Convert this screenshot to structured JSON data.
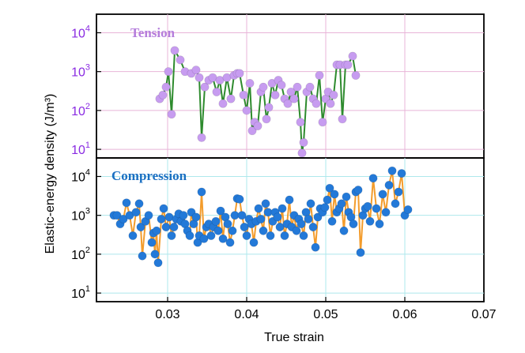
{
  "chart_data": {
    "type": "scatter",
    "xlabel": "True strain",
    "ylabel": "Elastic-energy density (J/m³)",
    "x_ticks": [
      0.03,
      0.04,
      0.05,
      0.06,
      0.07
    ],
    "x_tick_labels": [
      "0.03",
      "0.04",
      "0.05",
      "0.06",
      "0.07"
    ],
    "xlim": [
      0.021,
      0.07
    ],
    "y_scale": "log",
    "grid": true,
    "panels": [
      {
        "label": "Tension",
        "label_color": "#b57edc",
        "marker_color": "#c79cf0",
        "line_color": "#2e8b2e",
        "grid_color": "#e8b4d8",
        "ylim": [
          6,
          30000
        ],
        "y_ticks": [
          10,
          100,
          1000,
          10000
        ],
        "y_tick_labels": [
          {
            "base": "10",
            "exp": "1"
          },
          {
            "base": "10",
            "exp": "2"
          },
          {
            "base": "10",
            "exp": "3"
          },
          {
            "base": "10",
            "exp": "4"
          }
        ],
        "y_tick_color": "#8a2be2",
        "points": [
          [
            0.029,
            200
          ],
          [
            0.0294,
            250
          ],
          [
            0.0298,
            400
          ],
          [
            0.0301,
            1000
          ],
          [
            0.0305,
            80
          ],
          [
            0.0309,
            3500
          ],
          [
            0.0316,
            2000
          ],
          [
            0.0322,
            1000
          ],
          [
            0.033,
            900
          ],
          [
            0.0336,
            1100
          ],
          [
            0.034,
            700
          ],
          [
            0.0343,
            20
          ],
          [
            0.0347,
            400
          ],
          [
            0.0352,
            600
          ],
          [
            0.0357,
            700
          ],
          [
            0.0362,
            300
          ],
          [
            0.0366,
            600
          ],
          [
            0.037,
            150
          ],
          [
            0.0375,
            700
          ],
          [
            0.038,
            200
          ],
          [
            0.0384,
            800
          ],
          [
            0.0388,
            900
          ],
          [
            0.0391,
            900
          ],
          [
            0.0396,
            250
          ],
          [
            0.04,
            100
          ],
          [
            0.0404,
            500
          ],
          [
            0.0407,
            30
          ],
          [
            0.041,
            50
          ],
          [
            0.0414,
            40
          ],
          [
            0.0418,
            300
          ],
          [
            0.0421,
            400
          ],
          [
            0.0425,
            60
          ],
          [
            0.0428,
            120
          ],
          [
            0.0432,
            500
          ],
          [
            0.0436,
            250
          ],
          [
            0.044,
            600
          ],
          [
            0.0444,
            450
          ],
          [
            0.0448,
            200
          ],
          [
            0.0452,
            150
          ],
          [
            0.0456,
            300
          ],
          [
            0.046,
            200
          ],
          [
            0.0464,
            400
          ],
          [
            0.0468,
            50
          ],
          [
            0.047,
            8
          ],
          [
            0.0472,
            15
          ],
          [
            0.0476,
            300
          ],
          [
            0.048,
            400
          ],
          [
            0.0484,
            200
          ],
          [
            0.0488,
            150
          ],
          [
            0.0492,
            800
          ],
          [
            0.0496,
            50
          ],
          [
            0.05,
            200
          ],
          [
            0.0503,
            300
          ],
          [
            0.0506,
            150
          ],
          [
            0.051,
            250
          ],
          [
            0.0514,
            1500
          ],
          [
            0.0518,
            1500
          ],
          [
            0.0521,
            60
          ],
          [
            0.0525,
            1500
          ],
          [
            0.0528,
            1500
          ],
          [
            0.0534,
            2500
          ],
          [
            0.0538,
            800
          ]
        ]
      },
      {
        "label": "Compression",
        "label_color": "#1a6fc2",
        "marker_color": "#2379d8",
        "line_color": "#f39c2c",
        "grid_color": "#aee8ec",
        "ylim": [
          6,
          30000
        ],
        "y_ticks": [
          10,
          100,
          1000,
          10000
        ],
        "y_tick_labels": [
          {
            "base": "10",
            "exp": "1"
          },
          {
            "base": "10",
            "exp": "2"
          },
          {
            "base": "10",
            "exp": "3"
          },
          {
            "base": "10",
            "exp": "4"
          }
        ],
        "y_tick_color": "#000000",
        "points": [
          [
            0.0232,
            1000
          ],
          [
            0.0236,
            1000
          ],
          [
            0.024,
            600
          ],
          [
            0.0244,
            800
          ],
          [
            0.0248,
            2100
          ],
          [
            0.0252,
            1000
          ],
          [
            0.0256,
            300
          ],
          [
            0.026,
            1200
          ],
          [
            0.0264,
            2000
          ],
          [
            0.0266,
            500
          ],
          [
            0.0268,
            90
          ],
          [
            0.0272,
            700
          ],
          [
            0.0276,
            1000
          ],
          [
            0.028,
            200
          ],
          [
            0.0282,
            350
          ],
          [
            0.0284,
            100
          ],
          [
            0.0286,
            400
          ],
          [
            0.0288,
            60
          ],
          [
            0.0292,
            800
          ],
          [
            0.0295,
            1500
          ],
          [
            0.0298,
            500
          ],
          [
            0.0302,
            900
          ],
          [
            0.0305,
            300
          ],
          [
            0.0308,
            500
          ],
          [
            0.0311,
            800
          ],
          [
            0.0314,
            1100
          ],
          [
            0.0317,
            700
          ],
          [
            0.032,
            1000
          ],
          [
            0.0322,
            600
          ],
          [
            0.0325,
            400
          ],
          [
            0.0328,
            300
          ],
          [
            0.033,
            1200
          ],
          [
            0.0333,
            600
          ],
          [
            0.0336,
            900
          ],
          [
            0.0338,
            200
          ],
          [
            0.034,
            300
          ],
          [
            0.0343,
            4000
          ],
          [
            0.0346,
            250
          ],
          [
            0.0349,
            500
          ],
          [
            0.0352,
            600
          ],
          [
            0.0355,
            300
          ],
          [
            0.0358,
            500
          ],
          [
            0.0361,
            700
          ],
          [
            0.0364,
            400
          ],
          [
            0.0367,
            1300
          ],
          [
            0.037,
            250
          ],
          [
            0.0373,
            900
          ],
          [
            0.0376,
            600
          ],
          [
            0.0379,
            200
          ],
          [
            0.0382,
            400
          ],
          [
            0.0385,
            1000
          ],
          [
            0.0388,
            2700
          ],
          [
            0.0391,
            2600
          ],
          [
            0.0394,
            1000
          ],
          [
            0.0397,
            500
          ],
          [
            0.04,
            300
          ],
          [
            0.0403,
            800
          ],
          [
            0.0406,
            600
          ],
          [
            0.0409,
            200
          ],
          [
            0.0412,
            700
          ],
          [
            0.0415,
            1500
          ],
          [
            0.0418,
            800
          ],
          [
            0.0421,
            400
          ],
          [
            0.0424,
            2000
          ],
          [
            0.0427,
            1200
          ],
          [
            0.043,
            300
          ],
          [
            0.0433,
            700
          ],
          [
            0.0436,
            1200
          ],
          [
            0.0439,
            900
          ],
          [
            0.0442,
            500
          ],
          [
            0.0445,
            1500
          ],
          [
            0.0448,
            300
          ],
          [
            0.0451,
            600
          ],
          [
            0.0454,
            2500
          ],
          [
            0.0457,
            500
          ],
          [
            0.046,
            1000
          ],
          [
            0.0463,
            400
          ],
          [
            0.0466,
            800
          ],
          [
            0.0469,
            600
          ],
          [
            0.0472,
            300
          ],
          [
            0.0475,
            1200
          ],
          [
            0.0478,
            800
          ],
          [
            0.0481,
            2000
          ],
          [
            0.0484,
            500
          ],
          [
            0.0487,
            150
          ],
          [
            0.049,
            900
          ],
          [
            0.0493,
            1500
          ],
          [
            0.0496,
            1200
          ],
          [
            0.0499,
            1600
          ],
          [
            0.0502,
            2500
          ],
          [
            0.0505,
            5000
          ],
          [
            0.0508,
            700
          ],
          [
            0.0511,
            3500
          ],
          [
            0.0514,
            1200
          ],
          [
            0.0517,
            1500
          ],
          [
            0.052,
            2000
          ],
          [
            0.0523,
            400
          ],
          [
            0.0526,
            3000
          ],
          [
            0.0529,
            1200
          ],
          [
            0.0532,
            900
          ],
          [
            0.0535,
            600
          ],
          [
            0.0538,
            4000
          ],
          [
            0.0541,
            4500
          ],
          [
            0.0544,
            110
          ],
          [
            0.0547,
            1000
          ],
          [
            0.055,
            1500
          ],
          [
            0.0553,
            1700
          ],
          [
            0.0556,
            700
          ],
          [
            0.056,
            9000
          ],
          [
            0.0564,
            1500
          ],
          [
            0.0568,
            600
          ],
          [
            0.0572,
            3500
          ],
          [
            0.0576,
            1200
          ],
          [
            0.058,
            6000
          ],
          [
            0.0584,
            14000
          ],
          [
            0.0588,
            2000
          ],
          [
            0.0592,
            4000
          ],
          [
            0.0596,
            12000
          ],
          [
            0.06,
            1000
          ],
          [
            0.0604,
            1400
          ]
        ]
      }
    ]
  }
}
